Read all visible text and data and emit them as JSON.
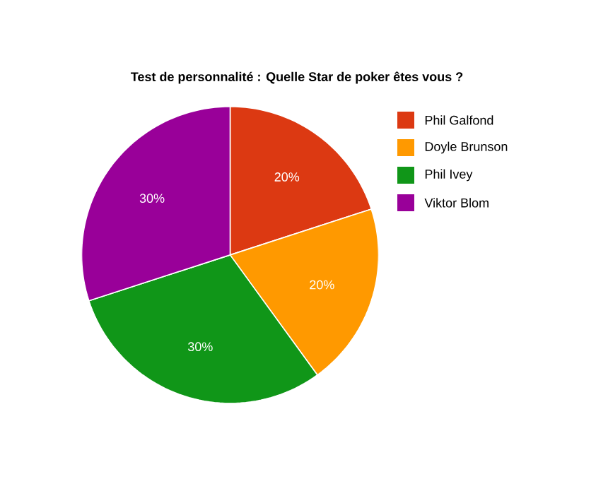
{
  "chart_data": {
    "type": "pie",
    "title": "Test de personnalité : Quelle Star de poker êtes vous ?",
    "categories": [
      "Phil Galfond",
      "Doyle Brunson",
      "Phil Ivey",
      "Viktor Blom"
    ],
    "values": [
      20,
      20,
      30,
      30
    ],
    "colors": [
      "#dc3912",
      "#ff9900",
      "#109618",
      "#990099"
    ],
    "value_labels": [
      "20%",
      "20%",
      "30%",
      "30%"
    ],
    "legend": "right"
  }
}
